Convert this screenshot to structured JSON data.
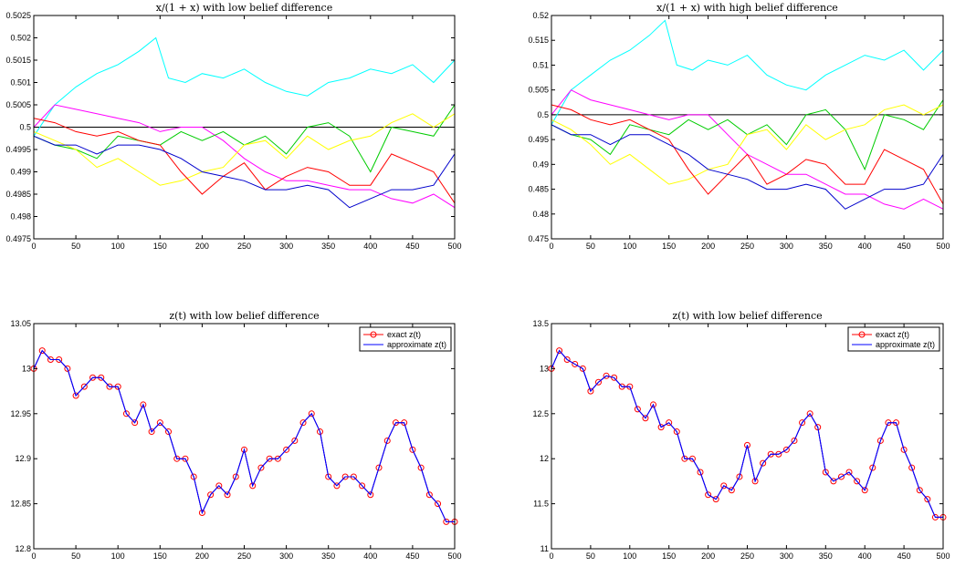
{
  "chart_data": [
    {
      "type": "line",
      "title": "x/(1 + x) with low belief difference",
      "xlim": [
        0,
        500
      ],
      "ylim": [
        0.4975,
        0.5025
      ],
      "xticks": [
        0,
        50,
        100,
        150,
        200,
        250,
        300,
        350,
        400,
        450,
        500
      ],
      "yticks": [
        0.4975,
        0.498,
        0.4985,
        0.499,
        0.4995,
        0.5,
        0.5005,
        0.501,
        0.5015,
        0.502,
        0.5025
      ],
      "ytick_labels": [
        "0.4975",
        "0.498",
        "0.4985",
        "0.499",
        "0.4995",
        "0.5",
        "0.5005",
        "0.501",
        "0.5015",
        "0.502",
        "0.5025"
      ],
      "reference_line": 0.5,
      "grid": false,
      "series": [
        {
          "color": "#00ffff",
          "x": [
            0,
            25,
            50,
            75,
            100,
            125,
            145,
            160,
            180,
            200,
            225,
            250,
            275,
            300,
            325,
            350,
            375,
            400,
            425,
            450,
            475,
            500
          ],
          "y": [
            0.4998,
            0.5005,
            0.5009,
            0.5012,
            0.5014,
            0.5017,
            0.502,
            0.5011,
            0.501,
            0.5012,
            0.5011,
            0.5013,
            0.501,
            0.5008,
            0.5007,
            0.501,
            0.5011,
            0.5013,
            0.5012,
            0.5014,
            0.501,
            0.5015
          ]
        },
        {
          "color": "#ff00ff",
          "x": [
            0,
            25,
            50,
            75,
            100,
            125,
            150,
            175,
            200,
            225,
            250,
            275,
            300,
            325,
            350,
            375,
            400,
            425,
            450,
            475,
            500
          ],
          "y": [
            0.5,
            0.5005,
            0.5004,
            0.5003,
            0.5002,
            0.5001,
            0.4999,
            0.5,
            0.5,
            0.4997,
            0.4993,
            0.499,
            0.4988,
            0.4988,
            0.4987,
            0.4986,
            0.4986,
            0.4984,
            0.4983,
            0.4985,
            0.4982
          ]
        },
        {
          "color": "#00cc00",
          "x": [
            0,
            25,
            50,
            75,
            100,
            125,
            150,
            175,
            200,
            225,
            250,
            275,
            300,
            325,
            350,
            375,
            400,
            425,
            450,
            475,
            500
          ],
          "y": [
            0.4998,
            0.4996,
            0.4995,
            0.4993,
            0.4998,
            0.4997,
            0.4996,
            0.4999,
            0.4997,
            0.4999,
            0.4996,
            0.4998,
            0.4994,
            0.5,
            0.5001,
            0.4998,
            0.499,
            0.5,
            0.4999,
            0.4998,
            0.5005
          ]
        },
        {
          "color": "#ffff00",
          "x": [
            0,
            25,
            50,
            75,
            100,
            125,
            150,
            175,
            200,
            225,
            250,
            275,
            300,
            325,
            350,
            375,
            400,
            425,
            450,
            475,
            500
          ],
          "y": [
            0.4999,
            0.4997,
            0.4995,
            0.4991,
            0.4993,
            0.499,
            0.4987,
            0.4988,
            0.499,
            0.4991,
            0.4996,
            0.4997,
            0.4993,
            0.4998,
            0.4995,
            0.4997,
            0.4998,
            0.5001,
            0.5003,
            0.5,
            0.5003
          ]
        },
        {
          "color": "#ff0000",
          "x": [
            0,
            25,
            50,
            75,
            100,
            125,
            150,
            175,
            200,
            225,
            250,
            275,
            300,
            325,
            350,
            375,
            400,
            425,
            450,
            475,
            500
          ],
          "y": [
            0.5002,
            0.5001,
            0.4999,
            0.4998,
            0.4999,
            0.4997,
            0.4996,
            0.499,
            0.4985,
            0.4989,
            0.4992,
            0.4986,
            0.4989,
            0.4991,
            0.499,
            0.4987,
            0.4987,
            0.4994,
            0.4992,
            0.499,
            0.4983
          ]
        },
        {
          "color": "#0000cc",
          "x": [
            0,
            25,
            50,
            75,
            100,
            125,
            150,
            175,
            200,
            225,
            250,
            275,
            300,
            325,
            350,
            375,
            400,
            425,
            450,
            475,
            500
          ],
          "y": [
            0.4998,
            0.4996,
            0.4996,
            0.4994,
            0.4996,
            0.4996,
            0.4995,
            0.4993,
            0.499,
            0.4989,
            0.4988,
            0.4986,
            0.4986,
            0.4987,
            0.4986,
            0.4982,
            0.4984,
            0.4986,
            0.4986,
            0.4987,
            0.4994
          ]
        }
      ]
    },
    {
      "type": "line",
      "title": "x/(1 + x) with high belief difference",
      "xlim": [
        0,
        500
      ],
      "ylim": [
        0.475,
        0.52
      ],
      "xticks": [
        0,
        50,
        100,
        150,
        200,
        250,
        300,
        350,
        400,
        450,
        500
      ],
      "yticks": [
        0.475,
        0.48,
        0.485,
        0.49,
        0.495,
        0.5,
        0.505,
        0.51,
        0.515,
        0.52
      ],
      "ytick_labels": [
        "0.475",
        "0.48",
        "0.485",
        "0.49",
        "0.495",
        "0.5",
        "0.505",
        "0.51",
        "0.515",
        "0.52"
      ],
      "reference_line": 0.5,
      "grid": false,
      "series": [
        {
          "color": "#00ffff",
          "x": [
            0,
            25,
            50,
            75,
            100,
            125,
            145,
            160,
            180,
            200,
            225,
            250,
            275,
            300,
            325,
            350,
            375,
            400,
            425,
            450,
            475,
            500
          ],
          "y": [
            0.498,
            0.505,
            0.508,
            0.511,
            0.513,
            0.516,
            0.519,
            0.51,
            0.509,
            0.511,
            0.51,
            0.512,
            0.508,
            0.506,
            0.505,
            0.508,
            0.51,
            0.512,
            0.511,
            0.513,
            0.509,
            0.513
          ]
        },
        {
          "color": "#ff00ff",
          "x": [
            0,
            25,
            50,
            75,
            100,
            125,
            150,
            175,
            200,
            225,
            250,
            275,
            300,
            325,
            350,
            375,
            400,
            425,
            450,
            475,
            500
          ],
          "y": [
            0.5,
            0.505,
            0.503,
            0.502,
            0.501,
            0.5,
            0.499,
            0.5,
            0.5,
            0.496,
            0.492,
            0.49,
            0.488,
            0.488,
            0.486,
            0.484,
            0.484,
            0.482,
            0.481,
            0.483,
            0.481
          ]
        },
        {
          "color": "#00cc00",
          "x": [
            0,
            25,
            50,
            75,
            100,
            125,
            150,
            175,
            200,
            225,
            250,
            275,
            300,
            325,
            350,
            375,
            400,
            425,
            450,
            475,
            500
          ],
          "y": [
            0.498,
            0.496,
            0.495,
            0.492,
            0.498,
            0.497,
            0.496,
            0.499,
            0.497,
            0.499,
            0.496,
            0.498,
            0.494,
            0.5,
            0.501,
            0.497,
            0.489,
            0.5,
            0.499,
            0.497,
            0.503
          ]
        },
        {
          "color": "#ffff00",
          "x": [
            0,
            25,
            50,
            75,
            100,
            125,
            150,
            175,
            200,
            225,
            250,
            275,
            300,
            325,
            350,
            375,
            400,
            425,
            450,
            475,
            500
          ],
          "y": [
            0.499,
            0.497,
            0.494,
            0.49,
            0.492,
            0.489,
            0.486,
            0.487,
            0.489,
            0.49,
            0.496,
            0.497,
            0.493,
            0.498,
            0.495,
            0.497,
            0.498,
            0.501,
            0.502,
            0.5,
            0.502
          ]
        },
        {
          "color": "#ff0000",
          "x": [
            0,
            25,
            50,
            75,
            100,
            125,
            150,
            175,
            200,
            225,
            250,
            275,
            300,
            325,
            350,
            375,
            400,
            425,
            450,
            475,
            500
          ],
          "y": [
            0.502,
            0.501,
            0.499,
            0.498,
            0.499,
            0.497,
            0.495,
            0.489,
            0.484,
            0.488,
            0.492,
            0.486,
            0.488,
            0.491,
            0.49,
            0.486,
            0.486,
            0.493,
            0.491,
            0.489,
            0.482
          ]
        },
        {
          "color": "#0000cc",
          "x": [
            0,
            25,
            50,
            75,
            100,
            125,
            150,
            175,
            200,
            225,
            250,
            275,
            300,
            325,
            350,
            375,
            400,
            425,
            450,
            475,
            500
          ],
          "y": [
            0.498,
            0.496,
            0.496,
            0.494,
            0.496,
            0.496,
            0.494,
            0.492,
            0.489,
            0.488,
            0.487,
            0.485,
            0.485,
            0.486,
            0.485,
            0.481,
            0.483,
            0.485,
            0.485,
            0.486,
            0.492
          ]
        }
      ]
    },
    {
      "type": "line",
      "title": "z(t) with low belief difference",
      "xlim": [
        0,
        500
      ],
      "ylim": [
        12.8,
        13.05
      ],
      "xticks": [
        0,
        50,
        100,
        150,
        200,
        250,
        300,
        350,
        400,
        450,
        500
      ],
      "yticks": [
        12.8,
        12.85,
        12.9,
        12.95,
        13,
        13.05
      ],
      "ytick_labels": [
        "12.8",
        "12.85",
        "12.9",
        "12.95",
        "13",
        "13.05"
      ],
      "grid": false,
      "legend": {
        "position": "top-right",
        "entries": [
          "exact z(t)",
          "approximate z(t)"
        ]
      },
      "x": [
        0,
        10,
        20,
        30,
        40,
        50,
        60,
        70,
        80,
        90,
        100,
        110,
        120,
        130,
        140,
        150,
        160,
        170,
        180,
        190,
        200,
        210,
        220,
        230,
        240,
        250,
        260,
        270,
        280,
        290,
        300,
        310,
        320,
        330,
        340,
        350,
        360,
        370,
        380,
        390,
        400,
        410,
        420,
        430,
        440,
        450,
        460,
        470,
        480,
        490,
        500
      ],
      "series": [
        {
          "name": "exact z(t)",
          "color": "#ff0000",
          "marker": "circle",
          "y": [
            13.0,
            13.02,
            13.01,
            13.01,
            13.0,
            12.97,
            12.98,
            12.99,
            12.99,
            12.98,
            12.98,
            12.95,
            12.94,
            12.96,
            12.93,
            12.94,
            12.93,
            12.9,
            12.9,
            12.88,
            12.84,
            12.86,
            12.87,
            12.86,
            12.88,
            12.91,
            12.87,
            12.89,
            12.9,
            12.9,
            12.91,
            12.92,
            12.94,
            12.95,
            12.93,
            12.88,
            12.87,
            12.88,
            12.88,
            12.87,
            12.86,
            12.89,
            12.92,
            12.94,
            12.94,
            12.91,
            12.89,
            12.86,
            12.85,
            12.83,
            12.83
          ]
        },
        {
          "name": "approximate z(t)",
          "color": "#0000ff",
          "y": [
            13.0,
            13.02,
            13.01,
            13.01,
            13.0,
            12.97,
            12.98,
            12.99,
            12.99,
            12.98,
            12.98,
            12.95,
            12.94,
            12.96,
            12.93,
            12.94,
            12.93,
            12.9,
            12.9,
            12.88,
            12.84,
            12.86,
            12.87,
            12.86,
            12.88,
            12.91,
            12.87,
            12.89,
            12.9,
            12.9,
            12.91,
            12.92,
            12.94,
            12.95,
            12.93,
            12.88,
            12.87,
            12.88,
            12.88,
            12.87,
            12.86,
            12.89,
            12.92,
            12.94,
            12.94,
            12.91,
            12.89,
            12.86,
            12.85,
            12.83,
            12.83
          ]
        }
      ]
    },
    {
      "type": "line",
      "title": "z(t) with low belief difference",
      "xlim": [
        0,
        500
      ],
      "ylim": [
        11,
        13.5
      ],
      "xticks": [
        0,
        50,
        100,
        150,
        200,
        250,
        300,
        350,
        400,
        450,
        500
      ],
      "yticks": [
        11,
        11.5,
        12,
        12.5,
        13,
        13.5
      ],
      "ytick_labels": [
        "11",
        "11.5",
        "12",
        "12.5",
        "13",
        "13.5"
      ],
      "grid": false,
      "legend": {
        "position": "top-right",
        "entries": [
          "exact z(t)",
          "approximate z(t)"
        ]
      },
      "x": [
        0,
        10,
        20,
        30,
        40,
        50,
        60,
        70,
        80,
        90,
        100,
        110,
        120,
        130,
        140,
        150,
        160,
        170,
        180,
        190,
        200,
        210,
        220,
        230,
        240,
        250,
        260,
        270,
        280,
        290,
        300,
        310,
        320,
        330,
        340,
        350,
        360,
        370,
        380,
        390,
        400,
        410,
        420,
        430,
        440,
        450,
        460,
        470,
        480,
        490,
        500
      ],
      "series": [
        {
          "name": "exact z(t)",
          "color": "#ff0000",
          "marker": "circle",
          "y": [
            13.0,
            13.2,
            13.1,
            13.05,
            13.0,
            12.75,
            12.85,
            12.92,
            12.9,
            12.8,
            12.8,
            12.55,
            12.45,
            12.6,
            12.35,
            12.4,
            12.3,
            12.0,
            12.0,
            11.85,
            11.6,
            11.55,
            11.7,
            11.65,
            11.8,
            12.15,
            11.75,
            11.95,
            12.05,
            12.05,
            12.1,
            12.2,
            12.4,
            12.5,
            12.35,
            11.85,
            11.75,
            11.8,
            11.85,
            11.75,
            11.65,
            11.9,
            12.2,
            12.4,
            12.4,
            12.1,
            11.9,
            11.65,
            11.55,
            11.35,
            11.35
          ]
        },
        {
          "name": "approximate z(t)",
          "color": "#0000ff",
          "y": [
            13.0,
            13.2,
            13.1,
            13.05,
            13.0,
            12.75,
            12.85,
            12.92,
            12.9,
            12.8,
            12.8,
            12.55,
            12.45,
            12.6,
            12.35,
            12.4,
            12.3,
            12.0,
            12.0,
            11.85,
            11.6,
            11.55,
            11.7,
            11.65,
            11.8,
            12.15,
            11.75,
            11.95,
            12.05,
            12.05,
            12.1,
            12.2,
            12.4,
            12.5,
            12.35,
            11.85,
            11.75,
            11.8,
            11.85,
            11.75,
            11.65,
            11.9,
            12.2,
            12.4,
            12.4,
            12.1,
            11.9,
            11.65,
            11.55,
            11.35,
            11.35
          ]
        }
      ]
    }
  ]
}
